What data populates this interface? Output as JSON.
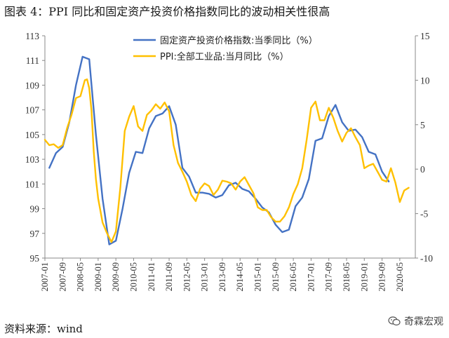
{
  "header": {
    "title": "图表 4：PPI 同比和固定资产投资价格指数同比的波动相关性很高"
  },
  "footer": {
    "source": "资料来源：wind",
    "watermark": "奇霖宏观"
  },
  "colors": {
    "series1": "#4472C4",
    "series2": "#FFC000",
    "axis": "#888888"
  },
  "chart_data": {
    "type": "line",
    "title": "",
    "x_tick_labels": [
      "2007-01",
      "2007-09",
      "2008-05",
      "2009-01",
      "2009-09",
      "2010-05",
      "2011-01",
      "2011-09",
      "2012-05",
      "2013-01",
      "2013-09",
      "2014-05",
      "2015-01",
      "2015-09",
      "2016-05",
      "2017-01",
      "2017-09",
      "2018-05",
      "2019-01",
      "2019-09",
      "2020-05"
    ],
    "y_left": {
      "min": 95,
      "max": 113,
      "ticks": [
        95,
        97,
        99,
        101,
        103,
        105,
        107,
        109,
        111,
        113
      ]
    },
    "y_right": {
      "min": -10,
      "max": 15,
      "ticks": [
        -10,
        -5,
        0,
        5,
        10,
        15
      ]
    },
    "legend_position": "top",
    "grid": false,
    "series": [
      {
        "name": "固定资产投资价格指数:当季同比（%）",
        "axis": "left",
        "x": [
          "2007-03",
          "2007-06",
          "2007-09",
          "2007-12",
          "2008-03",
          "2008-06",
          "2008-09",
          "2008-12",
          "2009-03",
          "2009-06",
          "2009-09",
          "2009-12",
          "2010-03",
          "2010-06",
          "2010-09",
          "2010-12",
          "2011-03",
          "2011-06",
          "2011-09",
          "2011-12",
          "2012-03",
          "2012-06",
          "2012-09",
          "2012-12",
          "2013-03",
          "2013-06",
          "2013-09",
          "2013-12",
          "2014-03",
          "2014-06",
          "2014-09",
          "2014-12",
          "2015-03",
          "2015-06",
          "2015-09",
          "2015-12",
          "2016-03",
          "2016-06",
          "2016-09",
          "2016-12",
          "2017-03",
          "2017-06",
          "2017-09",
          "2017-12",
          "2018-03",
          "2018-06",
          "2018-09",
          "2018-12",
          "2019-03",
          "2019-06",
          "2019-09",
          "2019-12"
        ],
        "values": [
          102.3,
          103.5,
          104.0,
          106.0,
          109.0,
          111.3,
          111.1,
          105.0,
          99.8,
          96.1,
          96.4,
          99.0,
          101.9,
          103.6,
          103.5,
          105.5,
          106.5,
          106.7,
          107.3,
          105.8,
          102.3,
          101.6,
          100.3,
          100.3,
          100.2,
          99.9,
          100.1,
          100.9,
          101.1,
          100.6,
          100.4,
          99.8,
          99.1,
          98.7,
          97.7,
          97.1,
          97.3,
          99.2,
          99.9,
          101.4,
          104.5,
          104.7,
          106.5,
          107.4,
          106.0,
          105.3,
          105.4,
          104.8,
          103.6,
          103.4,
          102.0,
          101.2
        ]
      },
      {
        "name": "PPI:全部工业品:当月同比（%）",
        "axis": "right",
        "x": [
          "2007-01",
          "2007-03",
          "2007-05",
          "2007-07",
          "2007-09",
          "2007-11",
          "2008-01",
          "2008-03",
          "2008-05",
          "2008-07",
          "2008-08",
          "2008-09",
          "2008-10",
          "2008-11",
          "2008-12",
          "2009-01",
          "2009-03",
          "2009-05",
          "2009-07",
          "2009-09",
          "2009-11",
          "2010-01",
          "2010-03",
          "2010-05",
          "2010-07",
          "2010-09",
          "2010-11",
          "2011-01",
          "2011-03",
          "2011-05",
          "2011-07",
          "2011-09",
          "2011-11",
          "2012-01",
          "2012-03",
          "2012-05",
          "2012-07",
          "2012-09",
          "2012-11",
          "2013-01",
          "2013-03",
          "2013-05",
          "2013-07",
          "2013-09",
          "2013-11",
          "2014-01",
          "2014-03",
          "2014-05",
          "2014-07",
          "2014-09",
          "2014-11",
          "2015-01",
          "2015-03",
          "2015-05",
          "2015-07",
          "2015-09",
          "2015-11",
          "2016-01",
          "2016-03",
          "2016-05",
          "2016-07",
          "2016-09",
          "2016-11",
          "2017-01",
          "2017-03",
          "2017-05",
          "2017-07",
          "2017-09",
          "2017-11",
          "2018-01",
          "2018-03",
          "2018-05",
          "2018-07",
          "2018-09",
          "2018-11",
          "2019-01",
          "2019-03",
          "2019-05",
          "2019-07",
          "2019-09",
          "2019-11",
          "2020-01",
          "2020-03",
          "2020-05",
          "2020-07",
          "2020-09"
        ],
        "values": [
          3.3,
          2.7,
          2.8,
          2.4,
          2.7,
          4.6,
          6.1,
          8.0,
          8.2,
          10.0,
          10.1,
          9.1,
          6.6,
          2.0,
          -1.1,
          -3.3,
          -6.0,
          -7.2,
          -8.2,
          -7.0,
          -2.1,
          4.3,
          5.9,
          7.1,
          4.8,
          4.3,
          6.1,
          6.6,
          7.3,
          6.8,
          7.5,
          6.5,
          2.7,
          0.7,
          -0.3,
          -1.4,
          -2.9,
          -3.6,
          -2.2,
          -1.6,
          -1.9,
          -2.9,
          -2.3,
          -1.3,
          -1.4,
          -1.6,
          -2.3,
          -1.4,
          -0.9,
          -1.8,
          -2.7,
          -4.3,
          -4.6,
          -4.6,
          -5.4,
          -5.9,
          -5.9,
          -5.3,
          -4.3,
          -2.8,
          -1.7,
          0.1,
          3.3,
          6.9,
          7.6,
          5.5,
          5.5,
          6.9,
          5.8,
          4.3,
          3.1,
          4.1,
          4.6,
          3.6,
          2.7,
          0.1,
          0.4,
          0.6,
          -0.3,
          -1.2,
          -1.4,
          0.1,
          -1.5,
          -3.7,
          -2.4,
          -2.1
        ]
      }
    ]
  }
}
